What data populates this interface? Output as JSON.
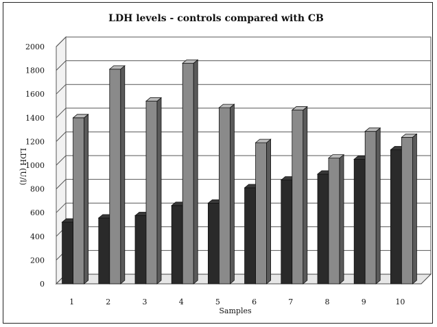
{
  "chart_data": {
    "type": "bar",
    "title": "LDH levels - controls compared with CB",
    "xlabel": "Samples",
    "ylabel": "LDH (U/l)",
    "categories": [
      "1",
      "2",
      "3",
      "4",
      "5",
      "6",
      "7",
      "8",
      "9",
      "10"
    ],
    "series": [
      {
        "values": [
          520,
          555,
          575,
          660,
          680,
          810,
          875,
          925,
          1050,
          1130
        ],
        "color": "#2a2a2a"
      },
      {
        "values": [
          1400,
          1810,
          1540,
          1860,
          1485,
          1190,
          1465,
          1060,
          1285,
          1235
        ],
        "color": "#8a8a8a"
      }
    ],
    "ylim": [
      0,
      2000
    ],
    "yticks": [
      "0",
      "200",
      "400",
      "600",
      "800",
      "1000",
      "1200",
      "1400",
      "1600",
      "1800",
      "2000"
    ],
    "grid": true,
    "legend": "none",
    "style": "3d-bar"
  }
}
